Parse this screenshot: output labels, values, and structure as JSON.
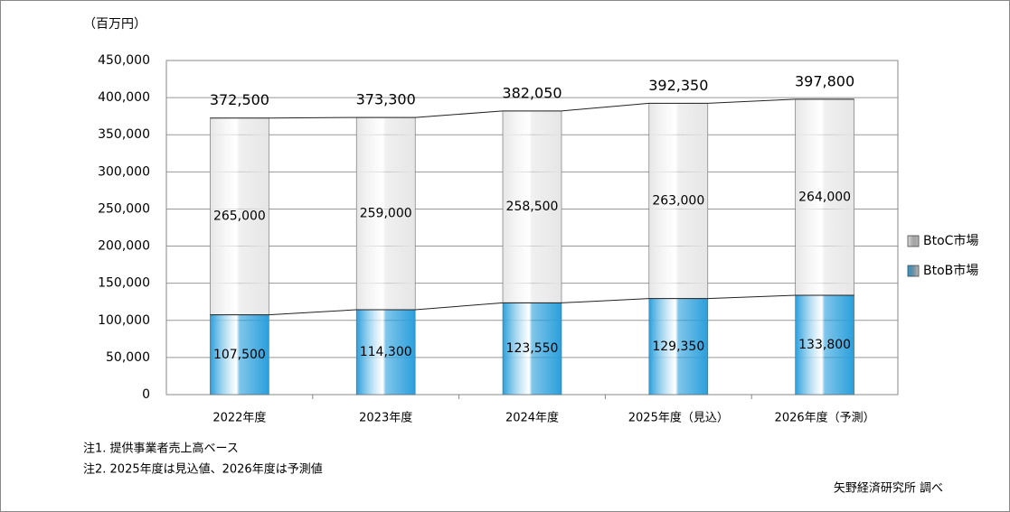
{
  "chart_data": {
    "type": "stacked_bar",
    "unit_label": "（百万円）",
    "categories": [
      "2022年度",
      "2023年度",
      "2024年度",
      "2025年度（見込）",
      "2026年度（予測）"
    ],
    "series": [
      {
        "name": "BtoB市場",
        "color": "#2a9fdc",
        "values": [
          107500,
          114300,
          123550,
          129350,
          133800
        ],
        "value_labels": [
          "107,500",
          "114,300",
          "123,550",
          "129,350",
          "133,800"
        ]
      },
      {
        "name": "BtoC市場",
        "color": "#e6e6e6",
        "values": [
          265000,
          259000,
          258500,
          263000,
          264000
        ],
        "value_labels": [
          "265,000",
          "259,000",
          "258,500",
          "263,000",
          "264,000"
        ]
      }
    ],
    "totals": {
      "values": [
        372500,
        373300,
        382050,
        392350,
        397800
      ],
      "value_labels": [
        "372,500",
        "373,300",
        "382,050",
        "392,350",
        "397,800"
      ]
    },
    "ylim": [
      0,
      450000
    ],
    "yticks": [
      0,
      {
        "value": 50000,
        "label": "50,000"
      },
      {
        "value": 100000,
        "label": "100,000"
      },
      {
        "value": 150000,
        "label": "150,000"
      },
      {
        "value": 200000,
        "label": "200,000"
      },
      {
        "value": 250000,
        "label": "250,000"
      },
      {
        "value": 300000,
        "label": "300,000"
      },
      {
        "value": 350000,
        "label": "350,000"
      },
      {
        "value": 400000,
        "label": "400,000"
      },
      {
        "value": 450000,
        "label": "450,000"
      }
    ],
    "grid": true,
    "legend": "right",
    "notes": [
      "注1. 提供事業者売上高ベース",
      "注2. 2025年度は見込値、2026年度は予測値"
    ],
    "source": "矢野経済研究所 調べ"
  }
}
